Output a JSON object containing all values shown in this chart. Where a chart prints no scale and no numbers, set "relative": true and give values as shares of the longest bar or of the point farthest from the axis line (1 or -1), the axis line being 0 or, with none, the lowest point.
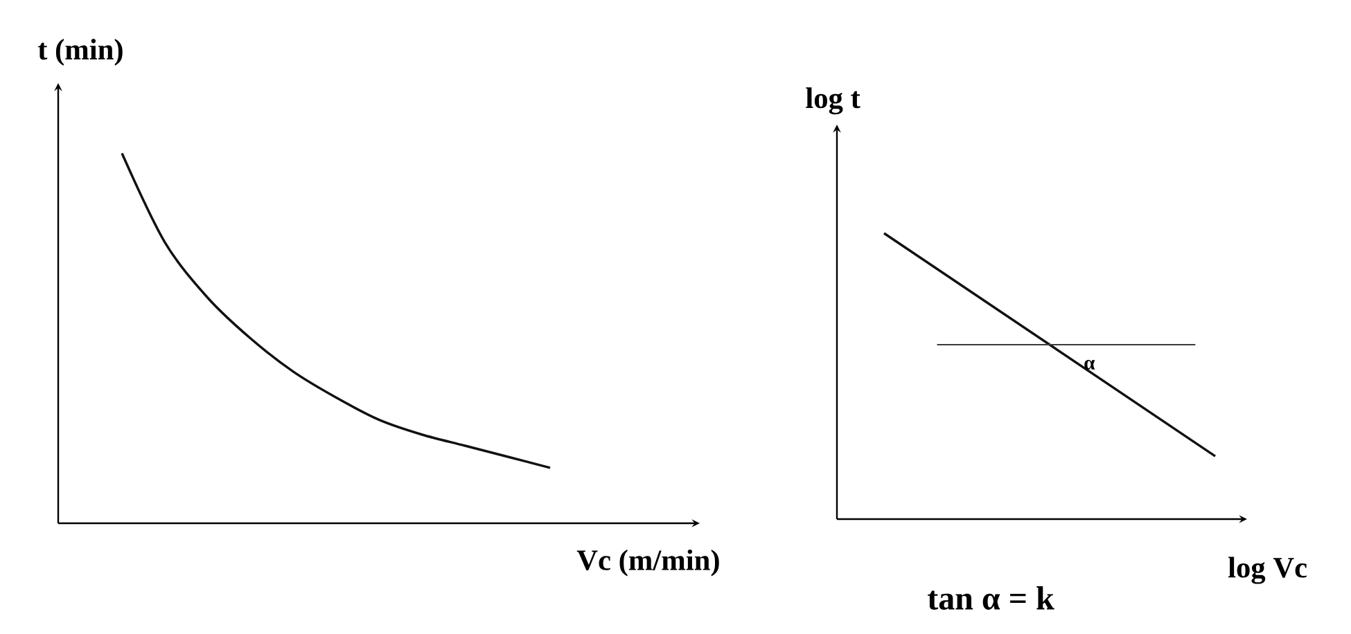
{
  "chart_data": [
    {
      "type": "line",
      "relative": true,
      "ylabel": "t (min)",
      "xlabel": "Vc (m/min)",
      "categories": [
        null,
        null,
        null,
        null,
        null,
        null,
        null,
        null,
        null,
        null,
        null
      ],
      "series": [
        {
          "color": "#111111",
          "values": [
            1,
            0.76,
            0.61,
            0.5,
            0.41,
            0.34,
            0.28,
            0.24,
            0.21,
            0.18,
            0.15
          ]
        }
      ],
      "marker": "none"
    },
    {
      "type": "line",
      "relative": true,
      "ylabel": "log t",
      "xlabel": "log Vc",
      "categories": [
        null,
        null
      ],
      "series": [
        {
          "color": "#111111",
          "values": [
            1,
            0.22
          ]
        }
      ],
      "ref_lines": [
        {
          "axis": "y",
          "value": 0.61,
          "color": "#3a3a3a"
        }
      ],
      "annotations": [
        "α",
        "tan α = k"
      ],
      "marker": "none"
    }
  ]
}
